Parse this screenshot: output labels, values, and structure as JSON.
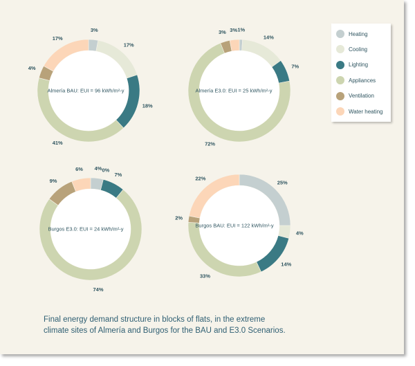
{
  "colors": {
    "Heating": "#c4cfd0",
    "Cooling": "#e6e9d8",
    "Lighting": "#3a7a84",
    "Appliances": "#cdd5b0",
    "Ventilation": "#b8a27a",
    "Water heating": "#fcd6b8"
  },
  "legend": [
    "Heating",
    "Cooling",
    "Lighting",
    "Appliances",
    "Ventilation",
    "Water heating"
  ],
  "caption": {
    "line1": "Final energy demand structure in blocks of flats, in the extreme",
    "line2": "climate sites of Almería and Burgos for the BAU and E3.0 Scenarios."
  },
  "chart_data": [
    {
      "type": "pie",
      "title": "Almería BAU: EUI = 96 kWh/m²-y",
      "labels": [
        "Heating",
        "Cooling",
        "Lighting",
        "Appliances",
        "Ventilation",
        "Water heating"
      ],
      "values": [
        3,
        17,
        18,
        41,
        4,
        17
      ],
      "value_labels": [
        "3%",
        "17%",
        "18%",
        "41%",
        "4%",
        "17%"
      ]
    },
    {
      "type": "pie",
      "title": "Almería E3.0: EUI = 25 kWh/m²-y",
      "labels": [
        "Heating",
        "Cooling",
        "Lighting",
        "Appliances",
        "Ventilation",
        "Water heating"
      ],
      "values": [
        1,
        14,
        7,
        72,
        3,
        3
      ],
      "value_labels": [
        "1%",
        "14%",
        "7%",
        "72%",
        "3%",
        "3%"
      ]
    },
    {
      "type": "pie",
      "title": "Burgos E3.0: EUI = 24 kWh/m²-y",
      "labels": [
        "Heating",
        "Cooling",
        "Lighting",
        "Appliances",
        "Ventilation",
        "Water heating"
      ],
      "values": [
        4,
        0,
        7,
        74,
        9,
        6
      ],
      "value_labels": [
        "4%",
        "0%",
        "7%",
        "74%",
        "9%",
        "6%"
      ]
    },
    {
      "type": "pie",
      "title": "Burgos BAU: EUI = 122 kWh/m²-y",
      "labels": [
        "Heating",
        "Cooling",
        "Lighting",
        "Appliances",
        "Ventilation",
        "Water heating"
      ],
      "values": [
        25,
        4,
        14,
        33,
        2,
        22
      ],
      "value_labels": [
        "25%",
        "4%",
        "14%",
        "33%",
        "2%",
        "22%"
      ]
    }
  ]
}
